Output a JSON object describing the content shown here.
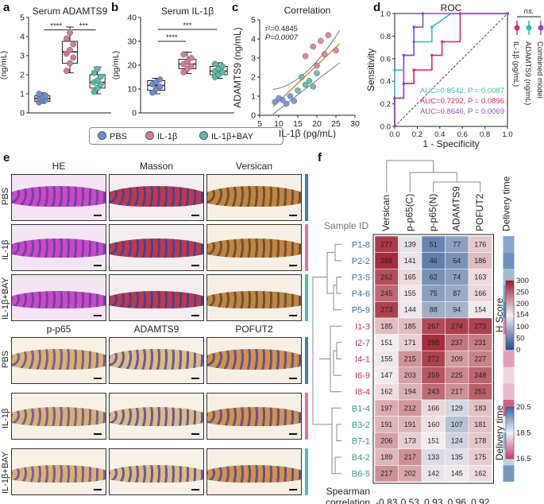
{
  "panel_labels": {
    "a": "a",
    "b": "b",
    "c": "c",
    "d": "d",
    "e": "e",
    "f": "f"
  },
  "colors": {
    "pbs": "#6d8fcf",
    "il1b": "#d97a9b",
    "bay": "#5fb8a8",
    "auc_bay": "#3bb7b5",
    "auc_il": "#d6286a",
    "auc_comb": "#8a4ec8"
  },
  "legend": {
    "items": [
      "PBS",
      "IL-1β",
      "IL-1β+BAY"
    ]
  },
  "chart_data": [
    {
      "id": "a",
      "type": "box",
      "title": "Serum  ADAMTS9",
      "ylabel": "(ng/mL)",
      "ylim": [
        0,
        5
      ],
      "yticks": [
        "0",
        "1",
        "2",
        "3",
        "4",
        "5"
      ],
      "groups": [
        {
          "name": "PBS",
          "points": [
            0.55,
            0.65,
            0.7,
            0.75,
            0.85,
            0.9,
            1.0
          ],
          "q1": 0.6,
          "median": 0.75,
          "q3": 0.9,
          "min": 0.5,
          "max": 1.05
        },
        {
          "name": "IL-1β",
          "points": [
            2.2,
            2.6,
            2.9,
            3.1,
            3.3,
            3.6,
            3.9,
            4.2
          ],
          "q1": 2.6,
          "median": 3.2,
          "q3": 3.75,
          "min": 2.1,
          "max": 4.5
        },
        {
          "name": "IL-1β+BAY",
          "points": [
            1.1,
            1.3,
            1.5,
            1.6,
            1.7,
            1.9,
            2.1,
            2.3
          ],
          "q1": 1.3,
          "median": 1.6,
          "q3": 2.0,
          "min": 1.0,
          "max": 2.4
        }
      ],
      "sig": [
        {
          "label": "****",
          "from": 0,
          "to": 1,
          "y": 4.35
        },
        {
          "label": "***",
          "from": 1,
          "to": 2,
          "y": 4.35
        }
      ]
    },
    {
      "id": "b",
      "type": "box",
      "title": "Serum  IL-1β",
      "ylabel": "(pg/mL)",
      "ylim": [
        0,
        40
      ],
      "yticks": [
        "0",
        "10",
        "20",
        "30",
        "40"
      ],
      "groups": [
        {
          "name": "PBS",
          "points": [
            8.5,
            10,
            11,
            12,
            13,
            14
          ],
          "q1": 9.5,
          "median": 11.5,
          "q3": 13.5,
          "min": 8.0,
          "max": 14.5
        },
        {
          "name": "IL-1β",
          "points": [
            17,
            18.5,
            19.5,
            20.5,
            21.5,
            23,
            24.5
          ],
          "q1": 18.5,
          "median": 20.5,
          "q3": 22.5,
          "min": 16.5,
          "max": 25.5
        },
        {
          "name": "IL-1β+BAY",
          "points": [
            15,
            16,
            17,
            17.5,
            18.5,
            19.5,
            20.5
          ],
          "q1": 16,
          "median": 17.5,
          "q3": 19.5,
          "min": 14.5,
          "max": 21
        }
      ],
      "sig": [
        {
          "label": "****",
          "from": 0,
          "to": 1,
          "y": 30
        },
        {
          "label": "***",
          "from": 0,
          "to": 2,
          "y": 35
        }
      ]
    },
    {
      "id": "c",
      "type": "scatter",
      "title": "Correlation",
      "xlabel": "IL-1β (pg/mL)",
      "ylabel": "ADAMTS9 (ng/mL)",
      "xlim": [
        5,
        30
      ],
      "ylim": [
        0,
        5
      ],
      "xticks": [
        "5",
        "10",
        "15",
        "20",
        "25",
        "30"
      ],
      "yticks": [
        "0",
        "1",
        "2",
        "3",
        "4",
        "5"
      ],
      "annotation": [
        "r²=0.4845",
        "P=0.0007"
      ],
      "points": [
        {
          "x": 9,
          "y": 0.7,
          "g": "PBS"
        },
        {
          "x": 10,
          "y": 0.9,
          "g": "PBS"
        },
        {
          "x": 11,
          "y": 0.8,
          "g": "PBS"
        },
        {
          "x": 12,
          "y": 0.6,
          "g": "PBS"
        },
        {
          "x": 13,
          "y": 1.0,
          "g": "PBS"
        },
        {
          "x": 14,
          "y": 0.75,
          "g": "PBS"
        },
        {
          "x": 17,
          "y": 3.1,
          "g": "IL-1β"
        },
        {
          "x": 19,
          "y": 3.6,
          "g": "IL-1β"
        },
        {
          "x": 20,
          "y": 2.6,
          "g": "IL-1β"
        },
        {
          "x": 21,
          "y": 3.9,
          "g": "IL-1β"
        },
        {
          "x": 22,
          "y": 3.2,
          "g": "IL-1β"
        },
        {
          "x": 23,
          "y": 4.2,
          "g": "IL-1β"
        },
        {
          "x": 25,
          "y": 3.4,
          "g": "IL-1β"
        },
        {
          "x": 15,
          "y": 1.3,
          "g": "IL-1β+BAY"
        },
        {
          "x": 16,
          "y": 2.0,
          "g": "IL-1β+BAY"
        },
        {
          "x": 17,
          "y": 1.6,
          "g": "IL-1β+BAY"
        },
        {
          "x": 18,
          "y": 1.8,
          "g": "IL-1β+BAY"
        },
        {
          "x": 19,
          "y": 1.5,
          "g": "IL-1β+BAY"
        },
        {
          "x": 20,
          "y": 2.2,
          "g": "IL-1β+BAY"
        }
      ],
      "fit": {
        "x0": 8.5,
        "y0": 0.45,
        "x1": 26,
        "y1": 3.75
      }
    },
    {
      "id": "d",
      "type": "line",
      "title": "ROC",
      "xlabel": "1 - Specificity",
      "ylabel": "Sensitivity",
      "xlim": [
        0,
        1
      ],
      "ylim": [
        0,
        1
      ],
      "xticks": [
        "0.0",
        "0.2",
        "0.4",
        "0.6",
        "0.8",
        "1.0"
      ],
      "yticks": [
        "0.0",
        "0.2",
        "0.4",
        "0.6",
        "0.8",
        "1.0"
      ],
      "series": [
        {
          "name": "ADAMTS9",
          "color_key": "auc_bay",
          "x": [
            0,
            0,
            0.08,
            0.08,
            0.17,
            0.17,
            0.33,
            0.33,
            0.5,
            1
          ],
          "y": [
            0,
            0.5,
            0.5,
            0.63,
            0.63,
            0.75,
            0.75,
            0.88,
            1,
            1
          ]
        },
        {
          "name": "IL-1β",
          "color_key": "auc_il",
          "x": [
            0,
            0,
            0.08,
            0.08,
            0.17,
            0.17,
            0.33,
            0.33,
            0.42,
            0.42,
            0.58,
            0.58,
            1
          ],
          "y": [
            0,
            0.25,
            0.25,
            0.38,
            0.38,
            0.5,
            0.5,
            0.63,
            0.63,
            0.75,
            0.75,
            1,
            1
          ]
        },
        {
          "name": "Combined model",
          "color_key": "auc_comb",
          "x": [
            0,
            0,
            0.08,
            0.08,
            0.17,
            0.17,
            0.25,
            0.25,
            0.5,
            1
          ],
          "y": [
            0,
            0.25,
            0.25,
            0.63,
            0.63,
            0.88,
            0.88,
            1,
            1,
            1
          ]
        }
      ],
      "auc_labels": [
        {
          "text": "AUC=0.8542, P = 0.0087",
          "color_key": "auc_bay"
        },
        {
          "text": "AUC=0.7292, P = 0.0896",
          "color_key": "auc_il"
        },
        {
          "text": "AUC=0.8646, P = 0.0069",
          "color_key": "auc_comb"
        }
      ],
      "side_labels": [
        "IL-1β (pg/mL)",
        "ADAMTS9 (ng/mL)",
        "Combined model"
      ],
      "ns": "ns."
    },
    {
      "id": "f",
      "type": "heatmap",
      "columns": [
        "Versican",
        "p-p65(C)",
        "p-p65(N)",
        "ADAMTS9",
        "POFUT2"
      ],
      "extra_column": "Delivery time",
      "sample_header": "Sample ID",
      "rows": [
        {
          "id": "P1-8",
          "g": "P",
          "v": [
            277,
            139,
            51,
            77,
            176
          ],
          "t": 19.6
        },
        {
          "id": "P2-2",
          "g": "P",
          "v": [
            288,
            141,
            46,
            64,
            186
          ],
          "t": 19.9
        },
        {
          "id": "P3-5",
          "g": "P",
          "v": [
            262,
            165,
            62,
            74,
            163
          ],
          "t": 19.3
        },
        {
          "id": "P4-6",
          "g": "P",
          "v": [
            245,
            155,
            75,
            87,
            166
          ],
          "t": 19.7
        },
        {
          "id": "P5-9",
          "g": "P",
          "v": [
            273,
            144,
            88,
            94,
            154
          ],
          "t": 20.1
        },
        {
          "id": "I1-3",
          "g": "I",
          "v": [
            185,
            185,
            267,
            274,
            273
          ],
          "t": 17.2
        },
        {
          "id": "I2-7",
          "g": "I",
          "v": [
            151,
            171,
            288,
            237,
            231
          ],
          "t": 18.0
        },
        {
          "id": "I4-1",
          "g": "I",
          "v": [
            155,
            215,
            272,
            209,
            227
          ],
          "t": 17.6
        },
        {
          "id": "I6-9",
          "g": "I",
          "v": [
            147,
            203,
            259,
            225,
            248
          ],
          "t": 18.2
        },
        {
          "id": "I8-4",
          "g": "I",
          "v": [
            162,
            194,
            243,
            217,
            251
          ],
          "t": 17.9
        },
        {
          "id": "B1-4",
          "g": "B",
          "v": [
            197,
            212,
            166,
            129,
            183
          ],
          "t": 16.9
        },
        {
          "id": "B3-2",
          "g": "B",
          "v": [
            191,
            191,
            160,
            107,
            181
          ],
          "t": 18.6
        },
        {
          "id": "B7-1",
          "g": "B",
          "v": [
            206,
            173,
            151,
            124,
            178
          ],
          "t": 19.5
        },
        {
          "id": "B4-2",
          "g": "B",
          "v": [
            189,
            217,
            133,
            135,
            175
          ],
          "t": 19.0
        },
        {
          "id": "B6-5",
          "g": "B",
          "v": [
            217,
            202,
            142,
            145,
            162
          ],
          "t": 19.8
        }
      ],
      "spearman_label": [
        "Spearman",
        "correlation"
      ],
      "spearman": [
        "-0.83",
        "0.53",
        "0.93",
        "0.96",
        "0.92"
      ],
      "hscore": {
        "title": "H Score",
        "ticks": [
          "300",
          "250",
          "200",
          "154",
          "100",
          "50",
          "0"
        ],
        "min": 0,
        "max": 300
      },
      "delivery": {
        "title": "Delivery time",
        "ticks": [
          "20.5",
          "18.5",
          "16.5"
        ],
        "min": 16.5,
        "max": 20.5
      }
    }
  ],
  "micrographs": {
    "top": {
      "columns": [
        "HE",
        "Masson",
        "Versican"
      ],
      "rows": [
        "PBS",
        "IL-1β",
        "IL-1β+BAY"
      ]
    },
    "bottom": {
      "columns": [
        "p-p65",
        "ADAMTS9",
        "POFUT2"
      ],
      "rows": [
        "PBS",
        "IL-1β",
        "IL-1β+BAY"
      ]
    }
  }
}
